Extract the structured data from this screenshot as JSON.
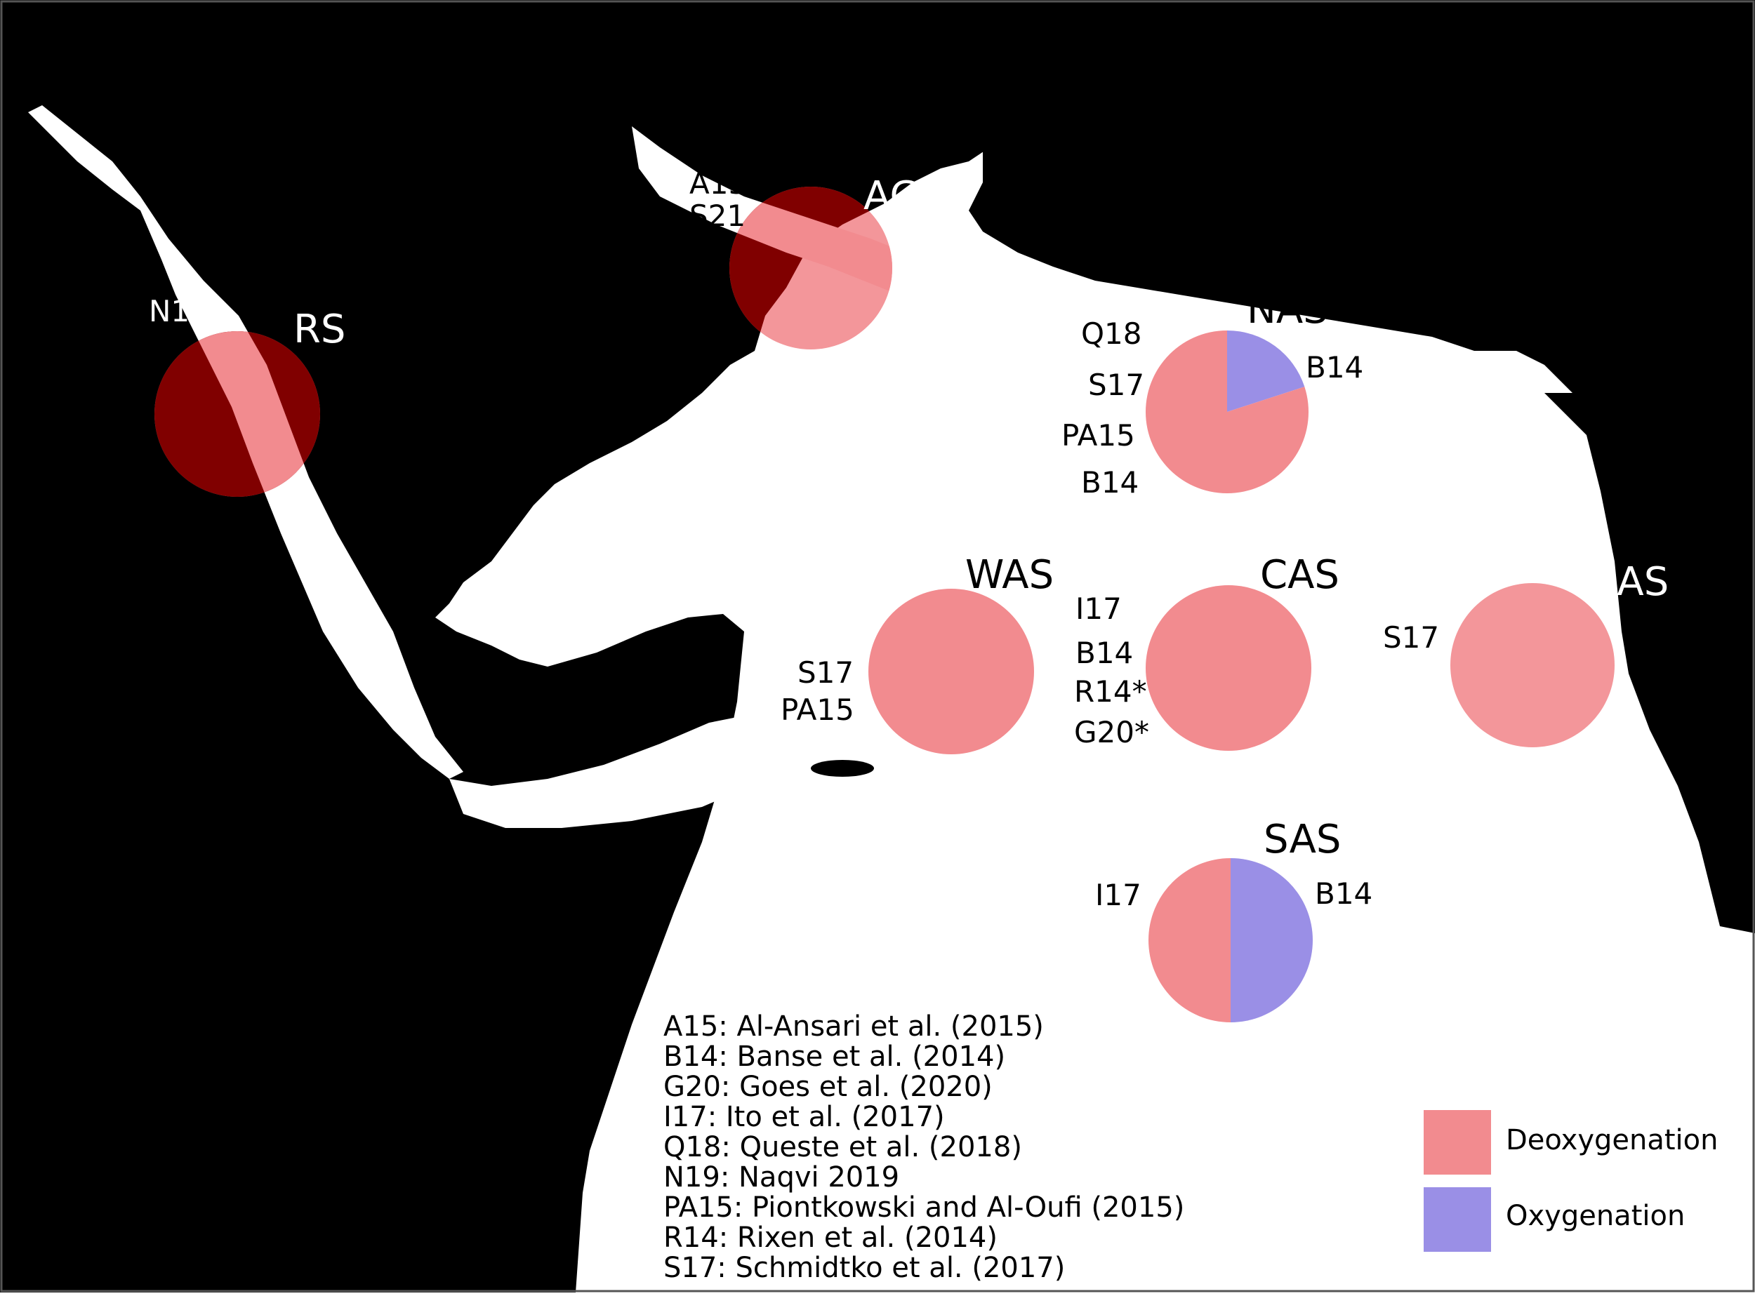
{
  "colors": {
    "deoxygenation": "#f28b8f",
    "oxygenation": "#9a8fe6",
    "land": "#000000",
    "sea": "#ffffff",
    "overlap": "#800000"
  },
  "regions": {
    "RS": {
      "name": "RS",
      "deoxygenation_fraction": 1.0,
      "oxygenation_fraction": 0.0,
      "studies": [
        "N19"
      ]
    },
    "AG": {
      "name": "AG",
      "deoxygenation_fraction": 1.0,
      "oxygenation_fraction": 0.0,
      "studies": [
        "A15",
        "S21"
      ]
    },
    "NAS": {
      "name": "NAS",
      "deoxygenation_fraction": 0.8,
      "oxygenation_fraction": 0.2,
      "studies_left": [
        "Q18",
        "S17",
        "PA15",
        "B14"
      ],
      "studies_right": [
        "B14"
      ]
    },
    "WAS": {
      "name": "WAS",
      "deoxygenation_fraction": 1.0,
      "oxygenation_fraction": 0.0,
      "studies": [
        "S17",
        "PA15"
      ]
    },
    "CAS": {
      "name": "CAS",
      "deoxygenation_fraction": 1.0,
      "oxygenation_fraction": 0.0,
      "studies": [
        "I17",
        "B14",
        "R14*",
        "G20*"
      ]
    },
    "EAS": {
      "name": "EAS",
      "deoxygenation_fraction": 1.0,
      "oxygenation_fraction": 0.0,
      "studies": [
        "S17"
      ]
    },
    "SAS": {
      "name": "SAS",
      "deoxygenation_fraction": 0.5,
      "oxygenation_fraction": 0.5,
      "studies_left": [
        "I17"
      ],
      "studies_right": [
        "B14"
      ]
    }
  },
  "references": [
    "A15: Al-Ansari et al. (2015)",
    "B14: Banse et al. (2014)",
    "G20: Goes et al. (2020)",
    "I17: Ito et al. (2017)",
    "Q18: Queste et al. (2018)",
    "N19: Naqvi 2019",
    "PA15: Piontkowski and Al-Oufi (2015)",
    "R14: Rixen et al. (2014)",
    "S17: Schmidtko et al. (2017)"
  ],
  "legend": {
    "deoxygenation": "Deoxygenation",
    "oxygenation": "Oxygenation"
  }
}
